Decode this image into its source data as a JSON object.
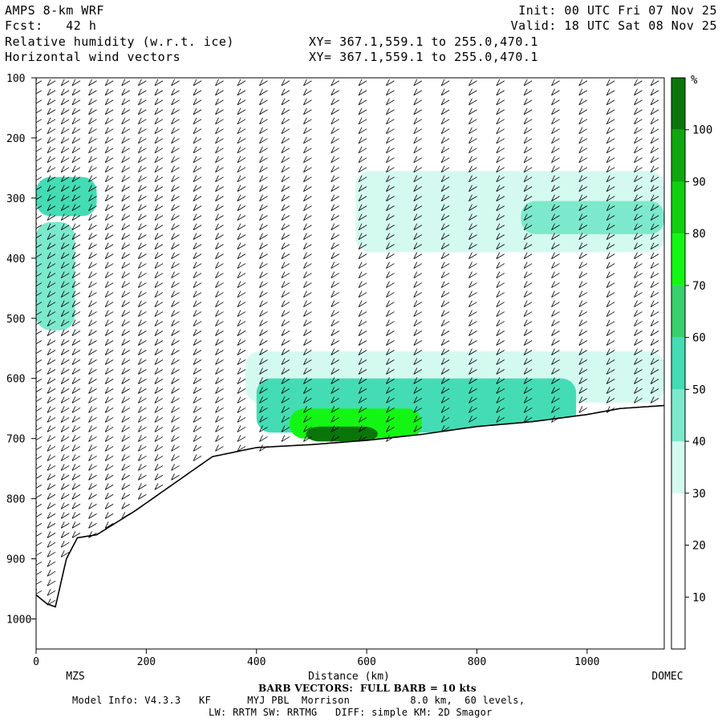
{
  "header": {
    "model": "AMPS 8-km WRF",
    "forecast": "Fcst:   42 h",
    "field1": "Relative humidity (w.r.t. ice)",
    "field2": "Horizontal wind vectors",
    "xy1": "XY= 367.1,559.1 to 255.0,470.1",
    "xy2": "XY= 367.1,559.1 to 255.0,470.1",
    "init": "Init: 00 UTC Fri 07 Nov 25",
    "valid": "Valid: 18 UTC Sat 08 Nov 25"
  },
  "footer": {
    "barb_note": "BARB VECTORS:  FULL BARB = 10 kts",
    "model_info": "Model Info: V4.3.3   KF      MYJ PBL  Morrison          8.0 km,  60 levels,",
    "physics": "LW: RRTM SW: RRTMG   DIFF: simple KM: 2D Smagor"
  },
  "colors": {
    "levels": [
      "#ffffff",
      "#ffffff",
      "#ffffff",
      "#d4faf0",
      "#7de9cc",
      "#44dcb4",
      "#37d06d",
      "#13f613",
      "#0fd00f",
      "#0fa70f",
      "#0a760a",
      "#3c5c0a"
    ],
    "terrain_line": "#000000"
  },
  "chart_data": {
    "type": "heatmap",
    "title": "Relative humidity (w.r.t. ice)",
    "xlabel": "Distance (km)",
    "ylabel": "",
    "xlim": [
      0,
      1140
    ],
    "ylim": [
      100,
      1050
    ],
    "y_inverted": true,
    "x_ticks": [
      0,
      200,
      400,
      600,
      800,
      1000
    ],
    "y_ticks": [
      100,
      200,
      300,
      400,
      500,
      600,
      700,
      800,
      900,
      1000
    ],
    "x_endpoints": [
      "MZS",
      "DOMEC"
    ],
    "colorbar": {
      "unit": "%",
      "ticks": [
        10,
        20,
        30,
        40,
        50,
        60,
        70,
        80,
        90,
        100
      ],
      "range": [
        0,
        110
      ]
    },
    "terrain_pressure": {
      "x": [
        0,
        20,
        35,
        55,
        75,
        110,
        180,
        250,
        320,
        400,
        500,
        600,
        700,
        800,
        900,
        1000,
        1060,
        1140
      ],
      "p": [
        960,
        975,
        980,
        900,
        865,
        860,
        820,
        775,
        730,
        715,
        710,
        703,
        693,
        680,
        672,
        660,
        650,
        645
      ]
    },
    "rh_regions": [
      {
        "x": [
          0,
          110
        ],
        "p": [
          265,
          330
        ],
        "rh": 50
      },
      {
        "x": [
          0,
          70
        ],
        "p": [
          340,
          520
        ],
        "rh": 45
      },
      {
        "x": [
          580,
          1140
        ],
        "p": [
          255,
          390
        ],
        "rh": 35
      },
      {
        "x": [
          880,
          1140
        ],
        "p": [
          305,
          360
        ],
        "rh": 45
      },
      {
        "x": [
          380,
          1140
        ],
        "p": [
          555,
          640
        ],
        "rh": 35
      },
      {
        "x": [
          400,
          980
        ],
        "p": [
          600,
          690
        ],
        "rh": 50
      },
      {
        "x": [
          460,
          700
        ],
        "p": [
          650,
          700
        ],
        "rh": 70
      },
      {
        "x": [
          490,
          620
        ],
        "p": [
          680,
          705
        ],
        "rh": 100
      }
    ],
    "wind_barb_columns_x": [
      10,
      35,
      60,
      80,
      110,
      140,
      170,
      200,
      230,
      260,
      300,
      340,
      380,
      420,
      460,
      500,
      550,
      600,
      650,
      700,
      750,
      800,
      850,
      900,
      950,
      1000,
      1050,
      1100,
      1130
    ]
  }
}
